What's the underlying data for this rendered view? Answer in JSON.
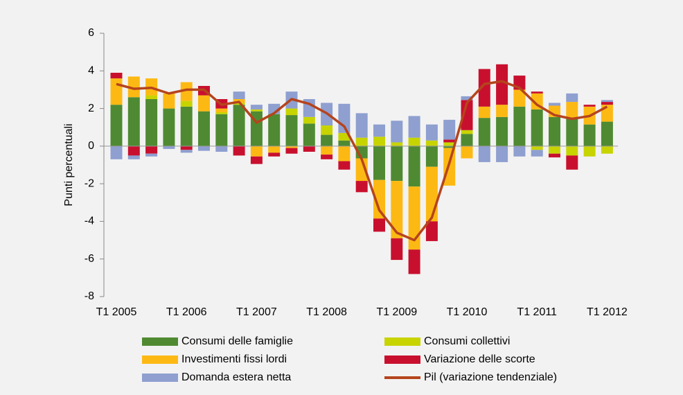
{
  "chart_data": {
    "type": "bar",
    "stacked": true,
    "y_label": "Punti percentuali",
    "categories": [
      "T1 2005",
      null,
      null,
      null,
      "T1 2006",
      null,
      null,
      null,
      "T1 2007",
      null,
      null,
      null,
      "T1 2008",
      null,
      null,
      null,
      "T1 2009",
      null,
      null,
      null,
      "T1 2010",
      null,
      null,
      null,
      "T1 2011",
      null,
      null,
      null,
      "T1 2012"
    ],
    "ylim": [
      -8,
      6
    ],
    "yticks": [
      -8,
      -6,
      -4,
      -2,
      0,
      2,
      4,
      6
    ],
    "series": [
      {
        "name": "Consumi delle famiglie",
        "color": "#4f8a32",
        "values": [
          2.2,
          2.6,
          2.5,
          2.0,
          2.1,
          1.85,
          1.7,
          2.2,
          1.85,
          1.7,
          1.65,
          1.2,
          0.6,
          0.3,
          -0.65,
          -1.8,
          -1.85,
          -2.15,
          -1.1,
          -0.1,
          0.65,
          1.5,
          1.55,
          2.1,
          1.95,
          1.55,
          1.5,
          1.15,
          1.3
        ]
      },
      {
        "name": "Consumi collettivi",
        "color": "#c8d400",
        "values": [
          0,
          0,
          0.2,
          0,
          0.3,
          0,
          0.1,
          0.1,
          0.1,
          0,
          0.35,
          0.35,
          0.5,
          0.4,
          0.45,
          0.5,
          0.2,
          0.45,
          0.3,
          0.2,
          0.2,
          0,
          0,
          0,
          -0.2,
          -0.4,
          -0.5,
          -0.55,
          -0.4
        ]
      },
      {
        "name": "Investimenti fissi lordi",
        "color": "#fdb913",
        "values": [
          1.4,
          1.1,
          0.9,
          0.8,
          1.0,
          0.85,
          0.2,
          0.2,
          -0.55,
          -0.35,
          -0.1,
          0,
          -0.45,
          -0.8,
          -1.2,
          -2.05,
          -3.05,
          -3.35,
          -2.9,
          -2.0,
          -0.65,
          0.6,
          0.65,
          0.9,
          0.85,
          0.6,
          0.85,
          0.95,
          0.9
        ]
      },
      {
        "name": "Variazione delle scorte",
        "color": "#c8102e",
        "values": [
          0.3,
          -0.5,
          -0.4,
          0,
          -0.2,
          0.5,
          0.5,
          -0.5,
          -0.4,
          -0.2,
          -0.3,
          -0.3,
          -0.25,
          -0.45,
          -0.6,
          -0.7,
          -1.15,
          -1.3,
          -1.05,
          0.15,
          1.6,
          2.0,
          2.15,
          0.75,
          0.1,
          -0.2,
          -0.75,
          0.1,
          0.15
        ]
      },
      {
        "name": "Domanda estera netta",
        "color": "#8e9fd0",
        "values": [
          -0.7,
          -0.2,
          -0.15,
          -0.15,
          -0.15,
          -0.25,
          -0.3,
          0.4,
          0.25,
          0.55,
          0.9,
          0.95,
          1.2,
          1.55,
          1.3,
          0.65,
          1.15,
          1.15,
          0.85,
          1.05,
          0.2,
          -0.85,
          -0.85,
          -0.55,
          -0.35,
          0.15,
          0.45,
          0,
          0.1
        ]
      },
      {
        "name": "Pil (variazione tendenziale)",
        "color": "#b5441c",
        "type": "line",
        "values": [
          3.3,
          3.05,
          3.1,
          2.8,
          3.0,
          3.0,
          2.2,
          2.35,
          1.25,
          1.75,
          2.5,
          2.25,
          1.75,
          1.05,
          -0.7,
          -3.4,
          -4.6,
          -5.0,
          -3.8,
          -0.9,
          2.3,
          3.3,
          3.45,
          3.1,
          2.2,
          1.65,
          1.45,
          1.6,
          2.1
        ]
      }
    ]
  }
}
